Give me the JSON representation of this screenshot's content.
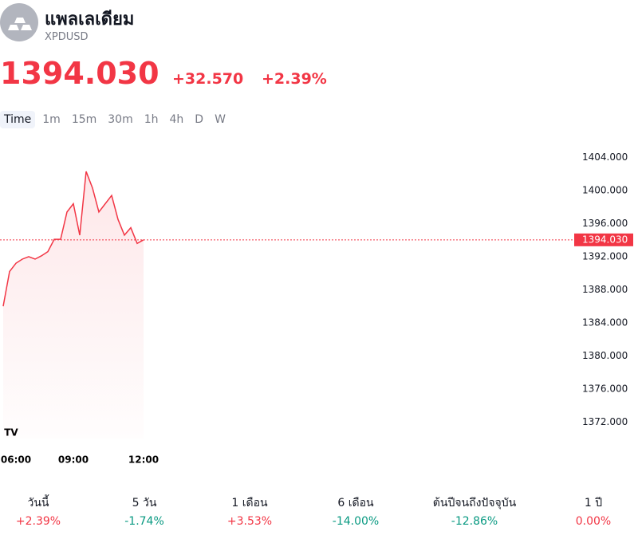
{
  "header": {
    "title": "แพลเลเดียม",
    "symbol": "XPDUSD",
    "change": "+32.570",
    "change_percent": "+2.39%"
  },
  "intervals": {
    "selected": 0,
    "items": [
      "Time",
      "1m",
      "15m",
      "30m",
      "1h",
      "4h",
      "D",
      "W"
    ]
  },
  "chart_data": {
    "type": "line",
    "color": "#f23645",
    "last_price": {
      "value": 1394.03,
      "label": "1394.030"
    },
    "categories": [
      null,
      null,
      "06:00",
      null,
      null,
      null,
      null,
      null,
      null,
      null,
      null,
      "09:00",
      null,
      null,
      null,
      null,
      null,
      null,
      null,
      null,
      null,
      null,
      "12:00",
      null,
      null,
      null,
      null,
      null,
      null,
      null,
      null,
      null,
      null,
      null,
      null,
      null,
      null,
      null,
      null,
      null,
      null,
      null,
      null,
      null,
      null,
      null,
      null,
      null,
      null,
      null,
      null,
      null,
      null,
      null,
      null,
      null,
      null,
      null,
      null,
      null,
      null,
      null,
      null,
      null,
      null,
      null,
      null,
      null,
      null,
      null,
      null,
      null,
      null,
      null,
      null,
      null,
      null,
      null,
      null,
      null,
      null,
      null,
      null,
      null,
      null,
      null,
      null,
      null,
      null,
      null
    ],
    "values": [
      1386,
      1390.2,
      1391.2,
      1391.7,
      1392.0,
      1391.7,
      1392.1,
      1392.6,
      1394.1,
      1394.1,
      1397.4,
      1398.4,
      1394.6,
      1402.3,
      1400.3,
      1397.4,
      1398.4,
      1399.4,
      1396.5,
      1394.6,
      1395.5,
      1393.6,
      1394.03,
      null,
      null,
      null,
      null,
      null,
      null,
      null,
      null,
      null,
      null,
      null,
      null,
      null,
      null,
      null,
      null,
      null,
      null,
      null,
      null,
      null,
      null,
      null,
      null,
      null,
      null,
      null,
      null,
      null,
      null,
      null,
      null,
      null,
      null,
      null,
      null,
      null,
      null,
      null,
      null,
      null,
      null,
      null,
      null,
      null,
      null,
      null,
      null,
      null,
      null,
      null,
      null,
      null,
      null,
      null,
      null,
      null,
      null,
      null,
      null,
      null,
      null,
      null,
      null,
      null,
      null,
      null
    ],
    "ylim": [
      1370,
      1405.2
    ],
    "yticks": [
      {
        "value": 1372,
        "label": "1372.000"
      },
      {
        "value": 1376,
        "label": "1376.000"
      },
      {
        "value": 1380,
        "label": "1380.000"
      },
      {
        "value": 1384,
        "label": "1384.000"
      },
      {
        "value": 1388,
        "label": "1388.000"
      },
      {
        "value": 1392,
        "label": "1392.000"
      },
      {
        "value": 1396,
        "label": "1396.000"
      },
      {
        "value": 1400,
        "label": "1400.000"
      },
      {
        "value": 1404,
        "label": "1404.000"
      }
    ]
  },
  "performance": [
    {
      "label": "วันนี้",
      "value": "+2.39%",
      "color": "#f23645"
    },
    {
      "label": "5 วัน",
      "value": "-1.74%",
      "color": "#089981"
    },
    {
      "label": "1 เดือน",
      "value": "+3.53%",
      "color": "#f23645"
    },
    {
      "label": "6 เดือน",
      "value": "-14.00%",
      "color": "#089981"
    },
    {
      "label": "ต้นปีจนถึงปัจจุบัน",
      "value": "-12.86%",
      "color": "#089981"
    },
    {
      "label": "1 ปี",
      "value": "0.00%",
      "color": "#f23645"
    }
  ]
}
